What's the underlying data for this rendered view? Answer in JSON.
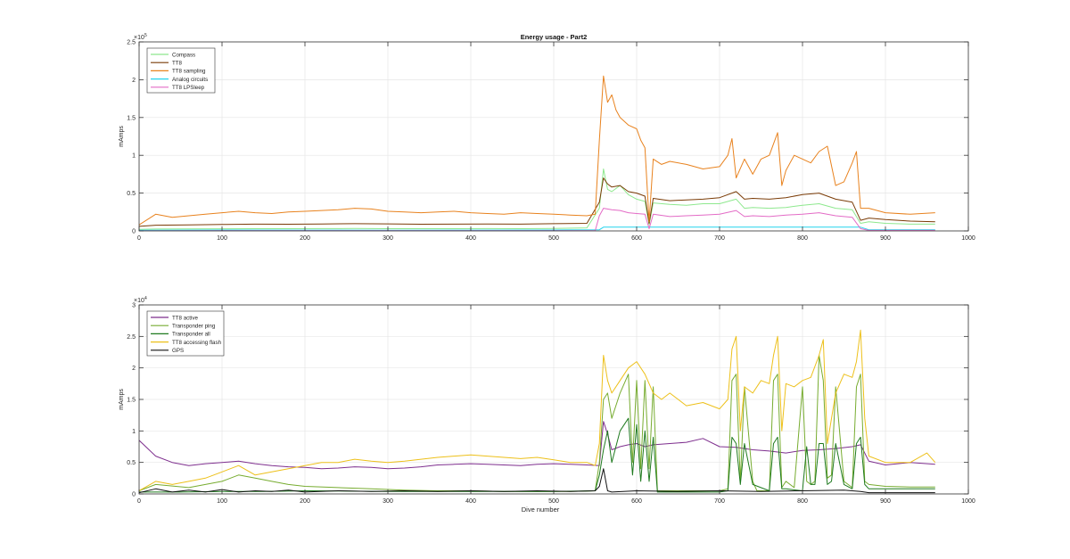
{
  "figure": {
    "background": "#ffffff"
  },
  "chart_data": [
    {
      "type": "line",
      "title": "Energy usage - Part2",
      "xlabel": "",
      "ylabel": "mAmps",
      "xlim": [
        0,
        1000
      ],
      "ylim": [
        0,
        250000
      ],
      "y_exponent_label": "×10",
      "y_exponent_power": "5",
      "xticks": [
        0,
        100,
        200,
        300,
        400,
        500,
        600,
        700,
        800,
        900,
        1000
      ],
      "yticks": [
        0,
        50000,
        100000,
        150000,
        200000,
        250000
      ],
      "yticklabels": [
        "0",
        "0.5",
        "1",
        "1.5",
        "2",
        "2.5"
      ],
      "grid": true,
      "legend_position": "top-left",
      "series": [
        {
          "name": "Compass",
          "color": "#8ee88e",
          "x": [
            0,
            20,
            60,
            100,
            140,
            180,
            220,
            260,
            300,
            340,
            380,
            420,
            460,
            500,
            540,
            555,
            560,
            565,
            570,
            580,
            590,
            600,
            610,
            615,
            620,
            640,
            660,
            680,
            700,
            720,
            730,
            740,
            760,
            780,
            800,
            820,
            840,
            860,
            870,
            880,
            900,
            930,
            960
          ],
          "y": [
            2000,
            2500,
            2600,
            2800,
            3000,
            2900,
            3100,
            3200,
            3000,
            2900,
            3000,
            3100,
            3000,
            3200,
            4000,
            30000,
            82000,
            55000,
            52000,
            60000,
            48000,
            42000,
            39000,
            8000,
            37000,
            35000,
            34000,
            36000,
            36000,
            42000,
            30000,
            31000,
            30000,
            31000,
            34000,
            36000,
            30000,
            28000,
            10000,
            12000,
            10000,
            9000,
            9000
          ]
        },
        {
          "name": "TT8",
          "color": "#7a3b06",
          "x": [
            0,
            20,
            60,
            100,
            140,
            180,
            220,
            260,
            300,
            340,
            380,
            420,
            460,
            500,
            540,
            555,
            560,
            565,
            570,
            580,
            590,
            600,
            610,
            615,
            620,
            640,
            660,
            680,
            700,
            720,
            730,
            740,
            760,
            780,
            800,
            820,
            840,
            860,
            870,
            880,
            900,
            930,
            960
          ],
          "y": [
            6000,
            7500,
            8000,
            8500,
            9000,
            8800,
            9200,
            9600,
            9300,
            8800,
            9000,
            9200,
            9000,
            9500,
            10000,
            38000,
            70000,
            62000,
            58000,
            60000,
            52000,
            50000,
            46000,
            10000,
            43000,
            40000,
            41000,
            42000,
            44000,
            52000,
            42000,
            43000,
            42000,
            44000,
            48000,
            50000,
            42000,
            38000,
            14000,
            17000,
            15000,
            13000,
            12000
          ]
        },
        {
          "name": "TT8 sampling",
          "color": "#e8821e",
          "x": [
            0,
            20,
            40,
            60,
            80,
            100,
            120,
            140,
            160,
            180,
            200,
            220,
            240,
            260,
            280,
            300,
            320,
            340,
            360,
            380,
            400,
            420,
            440,
            460,
            480,
            500,
            520,
            540,
            550,
            555,
            560,
            565,
            570,
            575,
            580,
            590,
            600,
            605,
            610,
            615,
            620,
            630,
            640,
            660,
            680,
            700,
            710,
            715,
            720,
            730,
            740,
            750,
            760,
            770,
            775,
            780,
            790,
            800,
            810,
            820,
            830,
            840,
            850,
            860,
            865,
            870,
            880,
            900,
            930,
            960
          ],
          "y": [
            8000,
            22000,
            18000,
            20000,
            22000,
            24000,
            26000,
            24000,
            23000,
            25000,
            26000,
            27000,
            28000,
            30000,
            29000,
            26000,
            25000,
            24000,
            25000,
            26000,
            24000,
            23000,
            22000,
            24000,
            23000,
            22000,
            21000,
            20000,
            22000,
            120000,
            205000,
            170000,
            180000,
            160000,
            150000,
            140000,
            135000,
            120000,
            110000,
            12000,
            95000,
            88000,
            92000,
            88000,
            82000,
            85000,
            100000,
            122000,
            70000,
            95000,
            75000,
            95000,
            100000,
            130000,
            60000,
            80000,
            100000,
            95000,
            90000,
            105000,
            112000,
            60000,
            65000,
            90000,
            105000,
            30000,
            30000,
            24000,
            22000,
            24000
          ]
        },
        {
          "name": "Analog circuits",
          "color": "#22d3ee",
          "x": [
            0,
            100,
            200,
            300,
            400,
            500,
            555,
            560,
            600,
            700,
            800,
            870,
            880,
            960
          ],
          "y": [
            1000,
            1200,
            1100,
            1000,
            1100,
            1200,
            1500,
            5000,
            5000,
            5000,
            5000,
            5000,
            1500,
            1500
          ]
        },
        {
          "name": "TT8 LPSleep",
          "color": "#e36bc6",
          "x": [
            0,
            100,
            200,
            300,
            400,
            500,
            550,
            555,
            560,
            570,
            580,
            590,
            600,
            610,
            615,
            620,
            640,
            660,
            680,
            700,
            720,
            730,
            740,
            760,
            780,
            800,
            820,
            840,
            860,
            870,
            880,
            960
          ],
          "y": [
            100,
            200,
            200,
            200,
            200,
            200,
            300,
            20000,
            30000,
            28000,
            27000,
            24000,
            23000,
            22000,
            3000,
            22000,
            19000,
            20000,
            21000,
            22000,
            27000,
            19000,
            20000,
            19000,
            21000,
            22000,
            24000,
            20000,
            18000,
            3000,
            700,
            700
          ]
        }
      ]
    },
    {
      "type": "line",
      "title": "",
      "xlabel": "Dive number",
      "ylabel": "mAmps",
      "xlim": [
        0,
        1000
      ],
      "ylim": [
        0,
        30000
      ],
      "y_exponent_label": "×10",
      "y_exponent_power": "4",
      "xticks": [
        0,
        100,
        200,
        300,
        400,
        500,
        600,
        700,
        800,
        900,
        1000
      ],
      "yticks": [
        0,
        5000,
        10000,
        15000,
        20000,
        25000,
        30000
      ],
      "yticklabels": [
        "0",
        "0.5",
        "1",
        "1.5",
        "2",
        "2.5",
        "3"
      ],
      "grid": true,
      "legend_position": "top-left",
      "series": [
        {
          "name": "TT8 active",
          "color": "#7e2f8e",
          "x": [
            0,
            20,
            40,
            60,
            80,
            100,
            120,
            140,
            160,
            180,
            200,
            220,
            240,
            260,
            280,
            300,
            320,
            340,
            360,
            380,
            400,
            420,
            440,
            460,
            480,
            500,
            520,
            540,
            555,
            560,
            565,
            570,
            580,
            590,
            600,
            610,
            620,
            640,
            660,
            680,
            700,
            720,
            740,
            760,
            780,
            800,
            820,
            840,
            860,
            870,
            880,
            900,
            930,
            960
          ],
          "y": [
            8500,
            6000,
            5000,
            4500,
            4800,
            5000,
            5200,
            4800,
            4500,
            4300,
            4200,
            4000,
            4100,
            4300,
            4200,
            4000,
            4100,
            4300,
            4600,
            4700,
            4800,
            4700,
            4600,
            4500,
            4700,
            4800,
            4700,
            4600,
            4500,
            11500,
            9500,
            7000,
            7500,
            7800,
            8000,
            7500,
            7800,
            8000,
            8200,
            8800,
            7500,
            7400,
            7000,
            6800,
            6500,
            6900,
            7000,
            7200,
            7500,
            7800,
            5200,
            4600,
            5000,
            4700
          ]
        },
        {
          "name": "Transponder ping",
          "color": "#77ac30",
          "x": [
            0,
            20,
            60,
            100,
            120,
            140,
            160,
            180,
            200,
            240,
            280,
            320,
            360,
            400,
            440,
            480,
            520,
            550,
            555,
            560,
            565,
            570,
            580,
            590,
            595,
            600,
            605,
            610,
            615,
            620,
            625,
            640,
            660,
            680,
            700,
            710,
            715,
            720,
            725,
            730,
            740,
            745,
            750,
            760,
            765,
            770,
            775,
            780,
            790,
            800,
            805,
            810,
            815,
            820,
            825,
            830,
            835,
            840,
            850,
            860,
            865,
            870,
            875,
            880,
            900,
            930,
            960
          ],
          "y": [
            500,
            1500,
            1000,
            2000,
            3000,
            2500,
            2000,
            1500,
            1200,
            1000,
            800,
            600,
            500,
            500,
            400,
            400,
            400,
            500,
            5000,
            15000,
            16000,
            12000,
            16000,
            19000,
            5000,
            18000,
            4000,
            18000,
            4000,
            17000,
            500,
            500,
            500,
            500,
            500,
            800,
            18000,
            19000,
            2000,
            17000,
            2000,
            500,
            500,
            500,
            18000,
            19000,
            1000,
            2000,
            1000,
            17000,
            2000,
            1500,
            2000,
            22000,
            18000,
            2500,
            3000,
            17000,
            2000,
            1000,
            17000,
            19000,
            2000,
            1500,
            1200,
            1100,
            1100
          ]
        },
        {
          "name": "Transponder all",
          "color": "#1f7a1f",
          "x": [
            0,
            50,
            100,
            150,
            200,
            300,
            400,
            500,
            550,
            555,
            560,
            565,
            570,
            580,
            590,
            595,
            600,
            605,
            610,
            615,
            620,
            625,
            640,
            700,
            710,
            715,
            720,
            725,
            730,
            740,
            760,
            765,
            770,
            775,
            780,
            800,
            805,
            810,
            815,
            820,
            825,
            830,
            835,
            840,
            850,
            860,
            865,
            870,
            875,
            880,
            960
          ],
          "y": [
            300,
            300,
            400,
            400,
            500,
            400,
            400,
            400,
            500,
            3000,
            7000,
            10000,
            5000,
            10000,
            12000,
            3000,
            11000,
            2000,
            10000,
            2000,
            9000,
            300,
            300,
            300,
            500,
            9000,
            8000,
            1500,
            8000,
            1500,
            500,
            8000,
            9000,
            800,
            800,
            500,
            7500,
            1500,
            1500,
            8000,
            8000,
            1500,
            2000,
            8000,
            1500,
            800,
            8000,
            9000,
            1500,
            800,
            800
          ]
        },
        {
          "name": "TT8 accessing flash",
          "color": "#edc01a",
          "x": [
            0,
            20,
            40,
            60,
            80,
            100,
            120,
            140,
            160,
            180,
            200,
            220,
            240,
            260,
            280,
            300,
            320,
            340,
            360,
            380,
            400,
            420,
            440,
            460,
            480,
            500,
            520,
            540,
            550,
            555,
            560,
            565,
            570,
            580,
            590,
            600,
            610,
            620,
            630,
            640,
            660,
            680,
            700,
            710,
            715,
            720,
            725,
            730,
            740,
            750,
            760,
            765,
            770,
            775,
            780,
            790,
            800,
            810,
            820,
            825,
            830,
            840,
            850,
            860,
            865,
            870,
            875,
            880,
            900,
            930,
            950,
            960
          ],
          "y": [
            500,
            2000,
            1500,
            2000,
            2500,
            3500,
            4500,
            3000,
            3500,
            4000,
            4500,
            5000,
            5000,
            5500,
            5200,
            5000,
            5200,
            5500,
            5800,
            6000,
            6200,
            6000,
            5800,
            5600,
            5800,
            5400,
            5000,
            5000,
            4500,
            8000,
            22000,
            18000,
            16000,
            18000,
            20000,
            21000,
            19000,
            16000,
            15000,
            16000,
            14000,
            14500,
            13500,
            15000,
            23000,
            25000,
            10000,
            17000,
            16000,
            18000,
            17500,
            22000,
            25000,
            10000,
            17500,
            17000,
            18000,
            18500,
            22000,
            24500,
            8000,
            16000,
            19000,
            18500,
            21000,
            26000,
            12000,
            6000,
            5000,
            5000,
            6500,
            5000
          ]
        },
        {
          "name": "GPS",
          "color": "#111111",
          "x": [
            0,
            20,
            40,
            60,
            80,
            100,
            120,
            140,
            160,
            180,
            200,
            240,
            280,
            320,
            360,
            400,
            440,
            480,
            520,
            550,
            555,
            560,
            565,
            570,
            600,
            650,
            700,
            750,
            800,
            850,
            870,
            880,
            960
          ],
          "y": [
            200,
            800,
            300,
            600,
            300,
            700,
            300,
            500,
            400,
            600,
            300,
            500,
            400,
            500,
            400,
            500,
            400,
            500,
            400,
            500,
            1200,
            4000,
            500,
            300,
            500,
            400,
            500,
            400,
            500,
            600,
            400,
            200,
            200
          ]
        }
      ]
    }
  ]
}
